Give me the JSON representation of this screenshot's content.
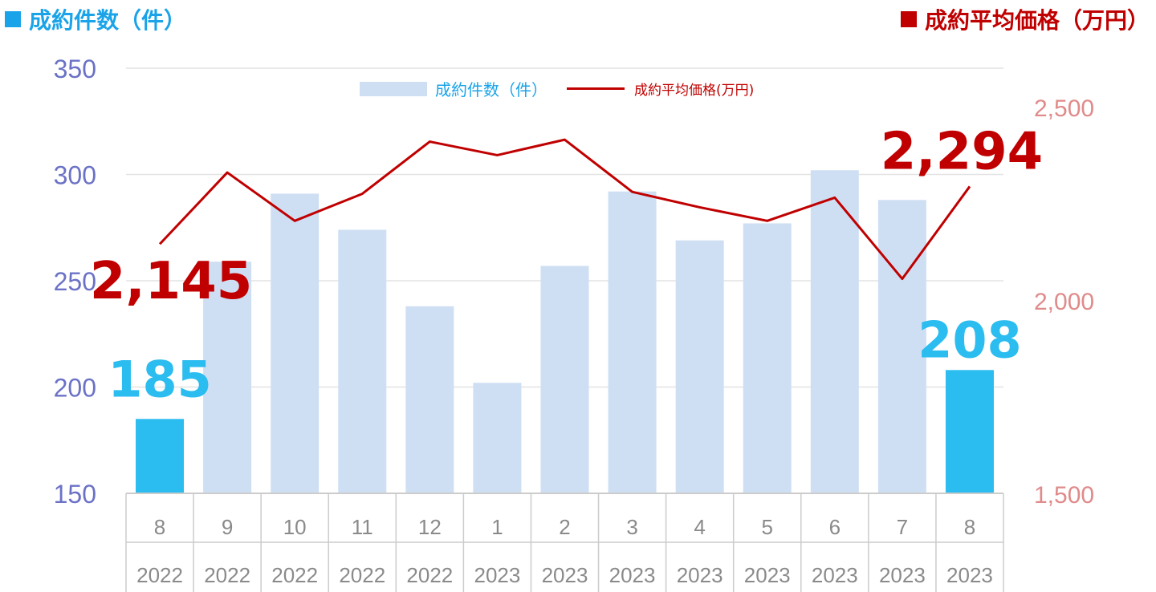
{
  "header": {
    "left_title": "成約件数（件）",
    "right_title": "成約平均価格（万円）"
  },
  "legend": {
    "bar_label": "成約件数（件）",
    "line_label": "成約平均価格(万円)"
  },
  "colors": {
    "bar": "#cfdff3",
    "bar_highlight": "#2bbcf0",
    "line": "#c00000",
    "left_axis": "#6b72c6",
    "right_axis": "#e08a8a",
    "grid": "#e3e3e3"
  },
  "chart_data": {
    "type": "bar+line",
    "categories": [
      {
        "month": "8",
        "year": "2022"
      },
      {
        "month": "9",
        "year": "2022"
      },
      {
        "month": "10",
        "year": "2022"
      },
      {
        "month": "11",
        "year": "2022"
      },
      {
        "month": "12",
        "year": "2022"
      },
      {
        "month": "1",
        "year": "2023"
      },
      {
        "month": "2",
        "year": "2023"
      },
      {
        "month": "3",
        "year": "2023"
      },
      {
        "month": "4",
        "year": "2023"
      },
      {
        "month": "5",
        "year": "2023"
      },
      {
        "month": "6",
        "year": "2023"
      },
      {
        "month": "7",
        "year": "2023"
      },
      {
        "month": "8",
        "year": "2023"
      }
    ],
    "series": [
      {
        "name": "成約件数（件）",
        "type": "bar",
        "axis": "left",
        "values": [
          185,
          259,
          291,
          274,
          238,
          202,
          257,
          292,
          269,
          277,
          302,
          288,
          208
        ],
        "highlight": [
          true,
          false,
          false,
          false,
          false,
          false,
          false,
          false,
          false,
          false,
          false,
          false,
          true
        ]
      },
      {
        "name": "成約平均価格(万円)",
        "type": "line",
        "axis": "right",
        "values": [
          2145,
          2330,
          2205,
          2275,
          2410,
          2375,
          2415,
          2280,
          2240,
          2205,
          2265,
          2055,
          2294
        ]
      }
    ],
    "left_axis": {
      "min": 150,
      "max": 350,
      "ticks": [
        "150",
        "200",
        "250",
        "300",
        "350"
      ]
    },
    "right_axis": {
      "min": 1500,
      "max": 2600,
      "ticks": [
        "1,500",
        "2,000",
        "2,500"
      ]
    },
    "annotations": {
      "bar_first": "185",
      "bar_last": "208",
      "line_first": "2,145",
      "line_last": "2,294"
    },
    "grid": true,
    "legend_position": "top-center"
  }
}
